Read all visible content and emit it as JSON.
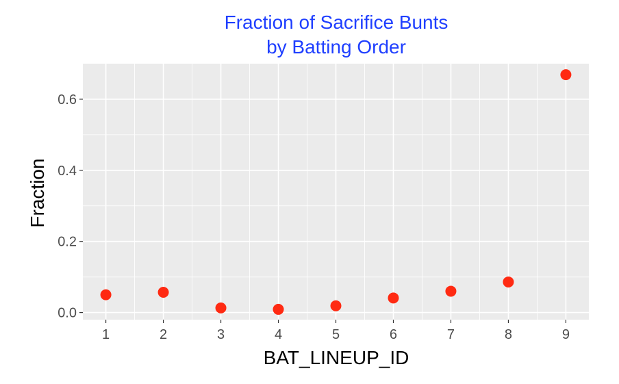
{
  "chart_data": {
    "type": "scatter",
    "title": "Fraction of Sacrifice Bunts",
    "subtitle": "by Batting Order",
    "xlabel": "BAT_LINEUP_ID",
    "ylabel": "Fraction",
    "x": [
      1,
      2,
      3,
      4,
      5,
      6,
      7,
      8,
      9
    ],
    "y": [
      0.05,
      0.057,
      0.013,
      0.009,
      0.019,
      0.041,
      0.06,
      0.086,
      0.669
    ],
    "xlim": [
      0.6,
      9.4
    ],
    "ylim": [
      -0.02,
      0.7
    ],
    "x_ticks": [
      1,
      2,
      3,
      4,
      5,
      6,
      7,
      8,
      9
    ],
    "x_tick_labels": [
      "1",
      "2",
      "3",
      "4",
      "5",
      "6",
      "7",
      "8",
      "9"
    ],
    "y_ticks": [
      0.0,
      0.2,
      0.4,
      0.6
    ],
    "y_tick_labels": [
      "0.0",
      "0.2",
      "0.4",
      "0.6"
    ],
    "grid": true,
    "legend": "none",
    "colors": {
      "title": "#1f3fff",
      "point": "#ff2a12",
      "panel": "#ebebeb",
      "grid": "#ffffff"
    }
  }
}
